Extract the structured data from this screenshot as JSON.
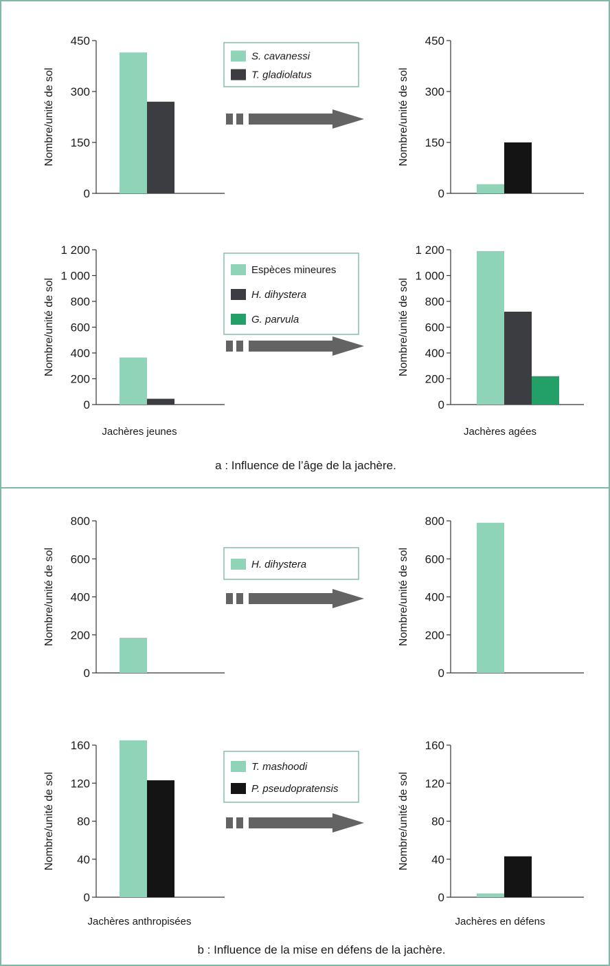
{
  "colors": {
    "frame": "#7fb8a6",
    "light": "#8fd3b8",
    "dark": "#3b3d40",
    "black": "#141414",
    "green": "#23a068",
    "arrow": "#636363"
  },
  "captions": {
    "a": "a : Influence de l’âge de la jachère.",
    "b": "b : Influence de la mise en défens de la jachère."
  },
  "chart_data": [
    {
      "id": "a1",
      "type": "bar",
      "ylabel": "Nombre/unité de sol",
      "ylim": [
        0,
        450
      ],
      "yticks": [
        {
          "v": 0,
          "t": "0"
        },
        {
          "v": 150,
          "t": "150"
        },
        {
          "v": 300,
          "t": "300"
        },
        {
          "v": 450,
          "t": "450"
        }
      ],
      "legend": [
        {
          "name": "S. cavanessi",
          "color": "light"
        },
        {
          "name": "T. gladiolatus",
          "color": "dark"
        }
      ],
      "groups": [
        {
          "label": "",
          "bars": [
            {
              "value": 415,
              "color": "light"
            },
            {
              "value": 270,
              "color": "dark"
            }
          ]
        },
        {
          "label": "",
          "bars": [
            {
              "value": 27,
              "color": "light"
            },
            {
              "value": 150,
              "color": "black"
            }
          ]
        }
      ]
    },
    {
      "id": "a2",
      "type": "bar",
      "ylabel": "Nombre/unité de sol",
      "ylim": [
        0,
        1200
      ],
      "yticks": [
        {
          "v": 0,
          "t": "0"
        },
        {
          "v": 200,
          "t": "200"
        },
        {
          "v": 400,
          "t": "400"
        },
        {
          "v": 600,
          "t": "600"
        },
        {
          "v": 800,
          "t": "800"
        },
        {
          "v": 1000,
          "t": "1 000"
        },
        {
          "v": 1200,
          "t": "1 200"
        }
      ],
      "legend": [
        {
          "name": "Espèces mineures",
          "color": "light"
        },
        {
          "name": "H. dihystera",
          "color": "dark"
        },
        {
          "name": "G. parvula",
          "color": "green"
        }
      ],
      "groups": [
        {
          "label": "Jachères jeunes",
          "bars": [
            {
              "value": 365,
              "color": "light"
            },
            {
              "value": 45,
              "color": "dark"
            }
          ]
        },
        {
          "label": "Jachères agées",
          "bars": [
            {
              "value": 1190,
              "color": "light"
            },
            {
              "value": 720,
              "color": "dark"
            },
            {
              "value": 220,
              "color": "green"
            }
          ]
        }
      ]
    },
    {
      "id": "b1",
      "type": "bar",
      "ylabel": "Nombre/unité de sol",
      "ylim": [
        0,
        800
      ],
      "yticks": [
        {
          "v": 0,
          "t": "0"
        },
        {
          "v": 200,
          "t": "200"
        },
        {
          "v": 400,
          "t": "400"
        },
        {
          "v": 600,
          "t": "600"
        },
        {
          "v": 800,
          "t": "800"
        }
      ],
      "legend": [
        {
          "name": "H. dihystera",
          "color": "light"
        }
      ],
      "groups": [
        {
          "label": "",
          "bars": [
            {
              "value": 185,
              "color": "light"
            }
          ]
        },
        {
          "label": "",
          "bars": [
            {
              "value": 790,
              "color": "light"
            }
          ]
        }
      ]
    },
    {
      "id": "b2",
      "type": "bar",
      "ylabel": "Nombre/unité de sol",
      "ylim": [
        0,
        160
      ],
      "yticks": [
        {
          "v": 0,
          "t": "0"
        },
        {
          "v": 40,
          "t": "40"
        },
        {
          "v": 80,
          "t": "80"
        },
        {
          "v": 120,
          "t": "120"
        },
        {
          "v": 160,
          "t": "160"
        }
      ],
      "legend": [
        {
          "name": "T. mashoodi",
          "color": "light"
        },
        {
          "name": "P. pseudopratensis",
          "color": "black"
        }
      ],
      "groups": [
        {
          "label": "Jachères anthropisées",
          "bars": [
            {
              "value": 165,
              "color": "light"
            },
            {
              "value": 123,
              "color": "black"
            }
          ]
        },
        {
          "label": "Jachères en défens",
          "bars": [
            {
              "value": 4,
              "color": "light"
            },
            {
              "value": 43,
              "color": "black"
            }
          ]
        }
      ]
    }
  ]
}
